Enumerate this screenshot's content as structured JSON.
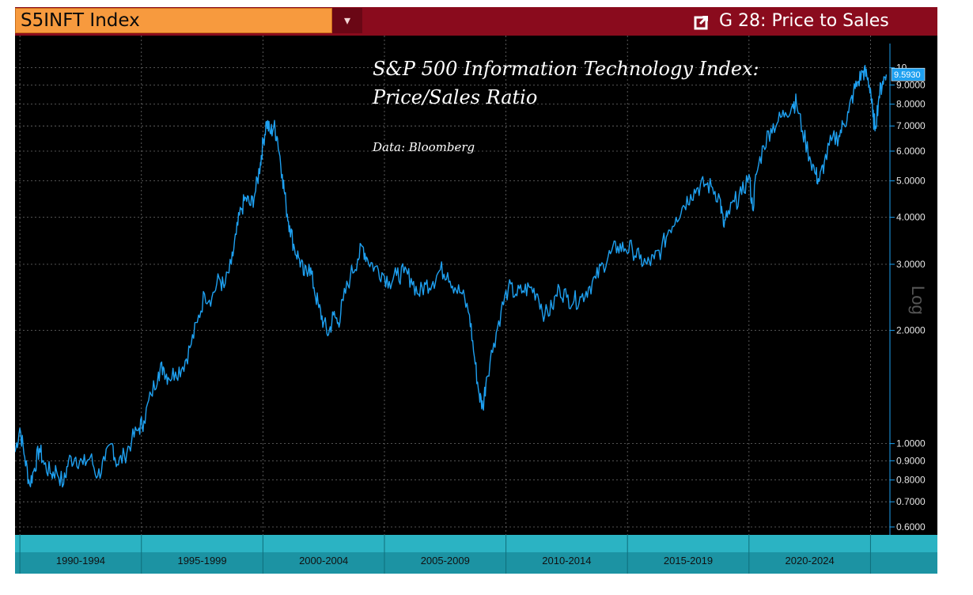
{
  "header": {
    "ticker": "S5INFT Index",
    "dropdown_icon": "dropdown-icon",
    "launch_icon": "launch-external-icon",
    "function_label": "G 28: Price to Sales"
  },
  "colors": {
    "background": "#000000",
    "header_bar": "#8a0b1d",
    "ticker_box": "#f79a3e",
    "series_line": "#1ea0f0",
    "axis_band": "#25a8b8",
    "last_value_box": "#1ea0f0"
  },
  "chart_data": {
    "type": "line",
    "title": "S&P 500 Information Technology Index:",
    "subtitle": "Price/Sales Ratio",
    "source_note": "Data: Bloomberg",
    "xlabel": "",
    "ylabel": "",
    "y_scale": "log",
    "y_scale_label": "Log",
    "ylim": [
      0.58,
      12
    ],
    "xlim": [
      1989.8,
      2025.8
    ],
    "yticks": [
      "0.6000",
      "0.7000",
      "0.8000",
      "0.9000",
      "1.0000",
      "2.0000",
      "3.0000",
      "4.0000",
      "5.0000",
      "6.0000",
      "7.0000",
      "8.0000",
      "9.0000",
      "10"
    ],
    "ytick_values": [
      0.6,
      0.7,
      0.8,
      0.9,
      1.0,
      2.0,
      3.0,
      4.0,
      5.0,
      6.0,
      7.0,
      8.0,
      9.0,
      10
    ],
    "x_category_labels": [
      "1990-1994",
      "1995-1999",
      "2000-2004",
      "2005-2009",
      "2010-2014",
      "2015-2019",
      "2020-2024"
    ],
    "x_category_ranges": [
      [
        1990,
        1995
      ],
      [
        1995,
        2000
      ],
      [
        2000,
        2005
      ],
      [
        2005,
        2010
      ],
      [
        2010,
        2015
      ],
      [
        2015,
        2020
      ],
      [
        2020,
        2025
      ]
    ],
    "grid": true,
    "last_value": 9.593,
    "last_value_label": "9.5930",
    "series": [
      {
        "name": "",
        "points": [
          [
            1989.8,
            0.95
          ],
          [
            1990.0,
            1.1
          ],
          [
            1990.2,
            0.92
          ],
          [
            1990.4,
            0.78
          ],
          [
            1990.6,
            0.86
          ],
          [
            1990.8,
            0.97
          ],
          [
            1991.0,
            0.88
          ],
          [
            1991.3,
            0.83
          ],
          [
            1991.5,
            0.85
          ],
          [
            1991.8,
            0.78
          ],
          [
            1992.0,
            0.9
          ],
          [
            1992.3,
            0.92
          ],
          [
            1992.6,
            0.88
          ],
          [
            1992.9,
            0.92
          ],
          [
            1993.2,
            0.82
          ],
          [
            1993.5,
            0.9
          ],
          [
            1993.8,
            1.0
          ],
          [
            1994.0,
            0.88
          ],
          [
            1994.3,
            0.93
          ],
          [
            1994.6,
            1.02
          ],
          [
            1994.9,
            1.1
          ],
          [
            1995.1,
            1.15
          ],
          [
            1995.4,
            1.35
          ],
          [
            1995.7,
            1.55
          ],
          [
            1995.9,
            1.6
          ],
          [
            1996.1,
            1.5
          ],
          [
            1996.4,
            1.55
          ],
          [
            1996.7,
            1.6
          ],
          [
            1997.0,
            1.8
          ],
          [
            1997.3,
            2.1
          ],
          [
            1997.6,
            2.5
          ],
          [
            1997.9,
            2.45
          ],
          [
            1998.2,
            2.75
          ],
          [
            1998.4,
            2.6
          ],
          [
            1998.7,
            3.0
          ],
          [
            1998.9,
            3.6
          ],
          [
            1999.1,
            4.2
          ],
          [
            1999.3,
            4.5
          ],
          [
            1999.5,
            4.3
          ],
          [
            1999.7,
            4.7
          ],
          [
            1999.9,
            5.6
          ],
          [
            2000.0,
            6.3
          ],
          [
            2000.15,
            7.2
          ],
          [
            2000.3,
            6.7
          ],
          [
            2000.45,
            7.0
          ],
          [
            2000.6,
            6.5
          ],
          [
            2000.8,
            5.2
          ],
          [
            2000.95,
            4.3
          ],
          [
            2001.1,
            3.8
          ],
          [
            2001.3,
            3.3
          ],
          [
            2001.5,
            3.1
          ],
          [
            2001.7,
            2.8
          ],
          [
            2001.9,
            3.0
          ],
          [
            2002.1,
            2.6
          ],
          [
            2002.3,
            2.3
          ],
          [
            2002.5,
            2.1
          ],
          [
            2002.7,
            1.95
          ],
          [
            2002.9,
            2.2
          ],
          [
            2003.1,
            2.1
          ],
          [
            2003.3,
            2.4
          ],
          [
            2003.6,
            2.8
          ],
          [
            2003.9,
            3.1
          ],
          [
            2004.1,
            3.35
          ],
          [
            2004.3,
            3.1
          ],
          [
            2004.6,
            2.95
          ],
          [
            2004.9,
            2.85
          ],
          [
            2005.2,
            2.7
          ],
          [
            2005.5,
            2.8
          ],
          [
            2005.8,
            2.85
          ],
          [
            2006.1,
            2.75
          ],
          [
            2006.4,
            2.5
          ],
          [
            2006.7,
            2.65
          ],
          [
            2007.0,
            2.7
          ],
          [
            2007.3,
            2.9
          ],
          [
            2007.6,
            2.85
          ],
          [
            2007.9,
            2.6
          ],
          [
            2008.2,
            2.5
          ],
          [
            2008.5,
            2.2
          ],
          [
            2008.7,
            1.7
          ],
          [
            2008.9,
            1.35
          ],
          [
            2009.05,
            1.25
          ],
          [
            2009.2,
            1.5
          ],
          [
            2009.5,
            1.85
          ],
          [
            2009.8,
            2.25
          ],
          [
            2010.1,
            2.6
          ],
          [
            2010.4,
            2.5
          ],
          [
            2010.7,
            2.55
          ],
          [
            2011.0,
            2.6
          ],
          [
            2011.3,
            2.5
          ],
          [
            2011.6,
            2.2
          ],
          [
            2011.9,
            2.3
          ],
          [
            2012.2,
            2.6
          ],
          [
            2012.5,
            2.45
          ],
          [
            2012.8,
            2.4
          ],
          [
            2013.1,
            2.45
          ],
          [
            2013.4,
            2.6
          ],
          [
            2013.7,
            2.75
          ],
          [
            2014.0,
            3.0
          ],
          [
            2014.3,
            3.2
          ],
          [
            2014.6,
            3.35
          ],
          [
            2014.9,
            3.3
          ],
          [
            2015.2,
            3.3
          ],
          [
            2015.5,
            3.1
          ],
          [
            2015.8,
            3.0
          ],
          [
            2016.1,
            3.1
          ],
          [
            2016.4,
            3.3
          ],
          [
            2016.7,
            3.7
          ],
          [
            2017.0,
            4.0
          ],
          [
            2017.3,
            4.3
          ],
          [
            2017.6,
            4.6
          ],
          [
            2017.9,
            4.8
          ],
          [
            2018.2,
            4.9
          ],
          [
            2018.5,
            4.8
          ],
          [
            2018.8,
            4.5
          ],
          [
            2018.95,
            3.8
          ],
          [
            2019.1,
            4.0
          ],
          [
            2019.4,
            4.4
          ],
          [
            2019.7,
            4.6
          ],
          [
            2020.0,
            5.2
          ],
          [
            2020.15,
            4.2
          ],
          [
            2020.3,
            5.2
          ],
          [
            2020.6,
            6.2
          ],
          [
            2020.9,
            6.9
          ],
          [
            2021.2,
            7.2
          ],
          [
            2021.5,
            7.6
          ],
          [
            2021.8,
            8.0
          ],
          [
            2021.95,
            8.1
          ],
          [
            2022.2,
            6.8
          ],
          [
            2022.5,
            5.8
          ],
          [
            2022.75,
            5.2
          ],
          [
            2022.9,
            5.0
          ],
          [
            2023.1,
            5.6
          ],
          [
            2023.4,
            6.4
          ],
          [
            2023.7,
            6.6
          ],
          [
            2023.9,
            7.1
          ],
          [
            2024.1,
            7.6
          ],
          [
            2024.3,
            8.6
          ],
          [
            2024.5,
            9.2
          ],
          [
            2024.7,
            9.8
          ],
          [
            2024.85,
            9.5
          ],
          [
            2025.0,
            8.8
          ],
          [
            2025.1,
            7.4
          ],
          [
            2025.2,
            7.0
          ],
          [
            2025.35,
            8.4
          ],
          [
            2025.5,
            9.2
          ],
          [
            2025.65,
            9.593
          ]
        ]
      }
    ]
  }
}
